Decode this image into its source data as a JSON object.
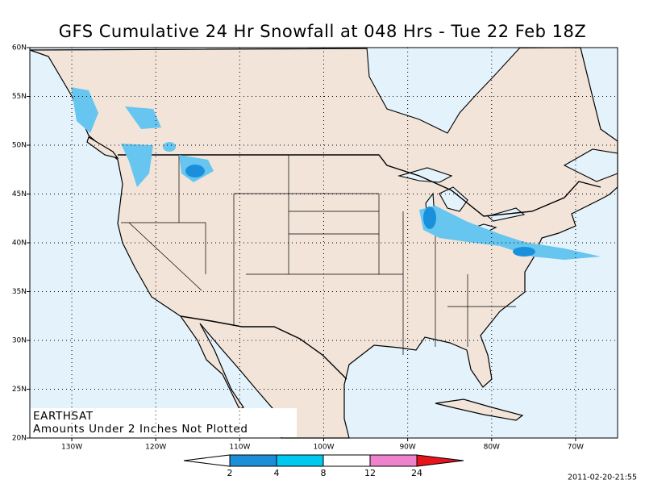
{
  "title": "GFS Cumulative 24 Hr Snowfall at 048 Hrs - Tue 22 Feb 18Z",
  "map": {
    "xlim": [
      -135,
      -65
    ],
    "ylim": [
      20,
      60
    ],
    "grid": true,
    "xticks": [
      {
        "value": -130,
        "label": "130W"
      },
      {
        "value": -120,
        "label": "120W"
      },
      {
        "value": -110,
        "label": "110W"
      },
      {
        "value": -100,
        "label": "100W"
      },
      {
        "value": -90,
        "label": "90W"
      },
      {
        "value": -80,
        "label": "80W"
      },
      {
        "value": -70,
        "label": "70W"
      }
    ],
    "yticks": [
      {
        "value": 20,
        "label": "20N"
      },
      {
        "value": 25,
        "label": "25N"
      },
      {
        "value": 30,
        "label": "30N"
      },
      {
        "value": 35,
        "label": "35N"
      },
      {
        "value": 40,
        "label": "40N"
      },
      {
        "value": 45,
        "label": "45N"
      },
      {
        "value": 50,
        "label": "50N"
      },
      {
        "value": 55,
        "label": "55N"
      },
      {
        "value": 60,
        "label": "60N"
      }
    ]
  },
  "notes": [
    "EARTHSAT",
    "Amounts Under 2 Inches Not Plotted"
  ],
  "legend": {
    "bins": [
      2,
      4,
      8,
      12,
      24
    ],
    "colors": [
      "#ffffff",
      "#1a8fd8",
      "#00c8ee",
      "#ffffff",
      "#ee82cc",
      "#e8141c"
    ]
  },
  "timestamp": "2011-02-20-21:55"
}
